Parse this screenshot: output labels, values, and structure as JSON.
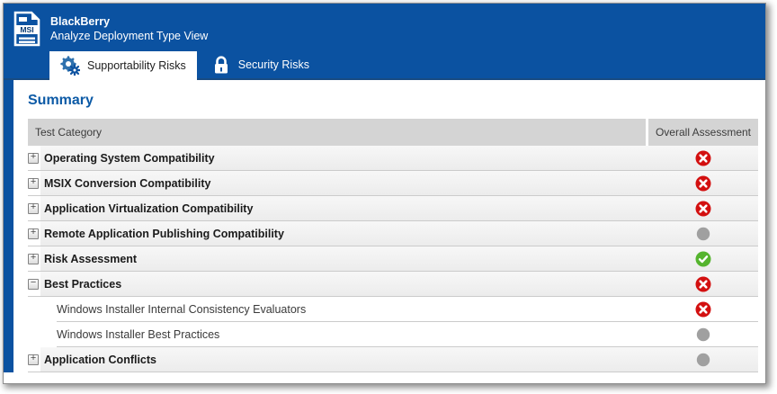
{
  "header": {
    "title": "BlackBerry",
    "subtitle": "Analyze Deployment Type View",
    "file_badge": "MSI"
  },
  "tabs": [
    {
      "id": "supportability",
      "label": "Supportability Risks",
      "icon": "gears-icon",
      "active": true
    },
    {
      "id": "security",
      "label": "Security Risks",
      "icon": "lock-icon",
      "active": false
    }
  ],
  "summary": {
    "heading": "Summary",
    "columns": {
      "category": "Test Category",
      "assessment": "Overall Assessment"
    },
    "rows": [
      {
        "label": "Operating System Compatibility",
        "level": 0,
        "expandable": true,
        "expanded": false,
        "status": "error"
      },
      {
        "label": "MSIX Conversion Compatibility",
        "level": 0,
        "expandable": true,
        "expanded": false,
        "status": "error"
      },
      {
        "label": "Application Virtualization Compatibility",
        "level": 0,
        "expandable": true,
        "expanded": false,
        "status": "error"
      },
      {
        "label": "Remote Application Publishing Compatibility",
        "level": 0,
        "expandable": true,
        "expanded": false,
        "status": "neutral"
      },
      {
        "label": "Risk Assessment",
        "level": 0,
        "expandable": true,
        "expanded": false,
        "status": "success"
      },
      {
        "label": "Best Practices",
        "level": 0,
        "expandable": true,
        "expanded": true,
        "status": "error"
      },
      {
        "label": "Windows Installer Internal Consistency Evaluators",
        "level": 1,
        "expandable": false,
        "status": "error"
      },
      {
        "label": "Windows Installer Best Practices",
        "level": 1,
        "expandable": false,
        "status": "neutral"
      },
      {
        "label": "Application Conflicts",
        "level": 0,
        "expandable": true,
        "expanded": false,
        "status": "neutral"
      }
    ]
  },
  "colors": {
    "header_blue": "#0B52A1",
    "tab_bottom_border": "#184B82",
    "accent_heading": "#0C5AA6",
    "table_header_bg": "#D4D4D4",
    "row_band": "#F2F2F2",
    "separator": "#CBCBCB",
    "status_error": "#D31010",
    "status_success": "#55B42E",
    "status_neutral": "#A0A0A0",
    "gear_icon_blue": "#2E71AE",
    "gear_icon_dark_blue": "#0D52A0"
  }
}
